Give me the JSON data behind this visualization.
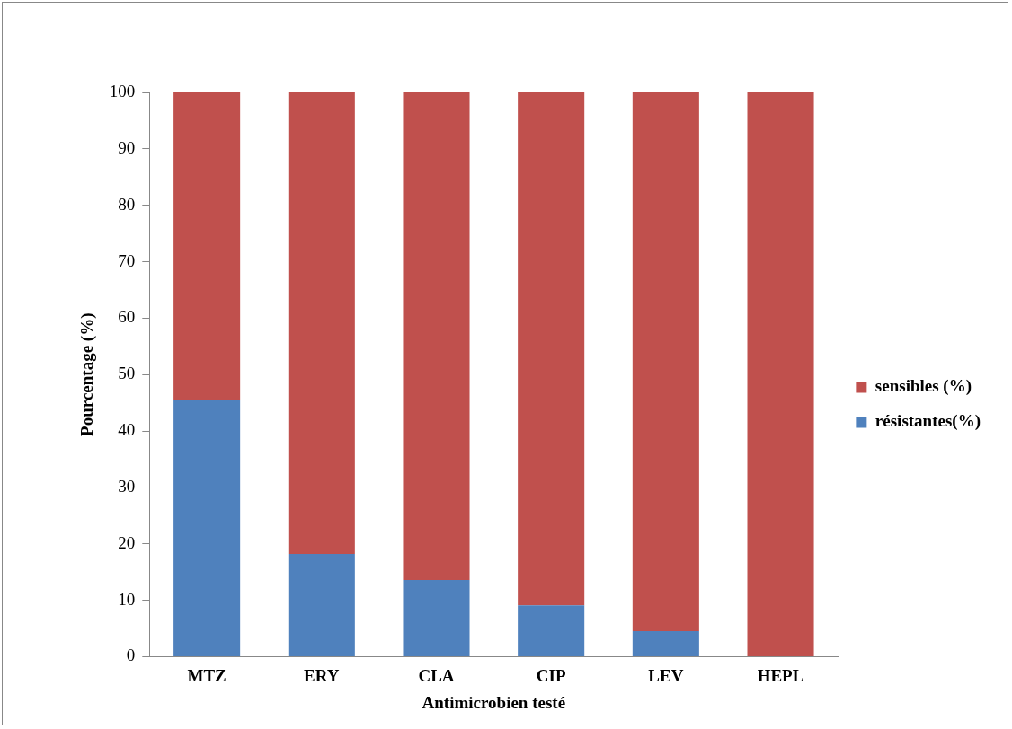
{
  "chart_data": {
    "type": "bar",
    "stacked": true,
    "xlabel": "Antimicrobien testé",
    "ylabel": "Pourcentage (%)",
    "categories": [
      "MTZ",
      "ERY",
      "CLA",
      "CIP",
      "LEV",
      "HEPL"
    ],
    "series": [
      {
        "name": "résistantes(%)",
        "color": "#4f81bd",
        "values": [
          45.5,
          18.2,
          13.6,
          9.1,
          4.5,
          0
        ]
      },
      {
        "name": "sensibles (%)",
        "color": "#c0504d",
        "values": [
          54.5,
          81.8,
          86.4,
          90.9,
          95.5,
          100
        ]
      }
    ],
    "ylim": [
      0,
      100
    ],
    "yticks": [
      0,
      10,
      20,
      30,
      40,
      50,
      60,
      70,
      80,
      90,
      100
    ],
    "grid": false,
    "legend": "right"
  }
}
